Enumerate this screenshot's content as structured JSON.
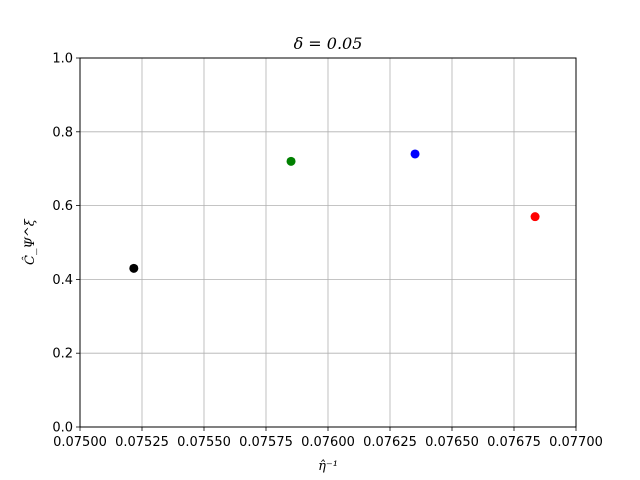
{
  "chart_data": {
    "type": "scatter",
    "title": "δ = 0.05",
    "xlabel": "η̂⁻¹",
    "ylabel": "Ĉ_Ψ^ξ",
    "xlim": [
      0.075,
      0.077
    ],
    "ylim": [
      0.0,
      1.0
    ],
    "grid": true,
    "xticks": [
      "0.07500",
      "0.07525",
      "0.07550",
      "0.07575",
      "0.07600",
      "0.07625",
      "0.07650",
      "0.07675",
      "0.07700"
    ],
    "yticks": [
      "0.0",
      "0.2",
      "0.4",
      "0.6",
      "0.8",
      "1.0"
    ],
    "points": [
      {
        "x": 0.075217,
        "y": 0.43,
        "color": "#000000"
      },
      {
        "x": 0.075851,
        "y": 0.72,
        "color": "#008000"
      },
      {
        "x": 0.076351,
        "y": 0.74,
        "color": "#0000ff"
      },
      {
        "x": 0.076835,
        "y": 0.57,
        "color": "#ff0000"
      }
    ]
  }
}
